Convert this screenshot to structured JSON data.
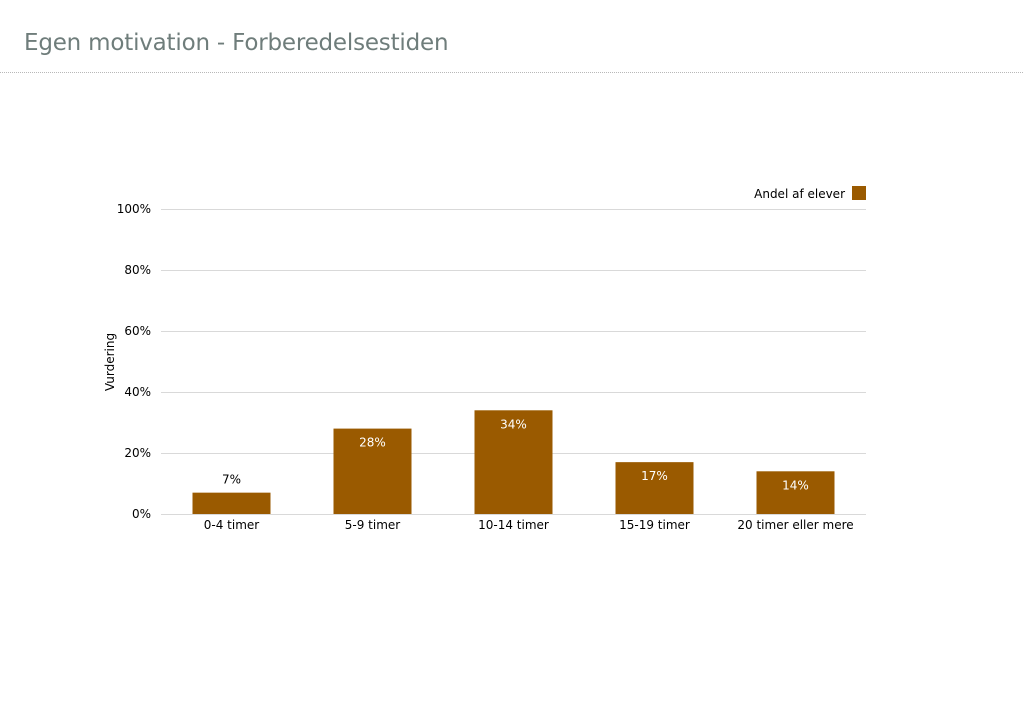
{
  "page": {
    "title": "Egen motivation - Forberedelsestiden"
  },
  "colors": {
    "bar": "#9a5a00",
    "grid": "#d9d9d9",
    "text": "#000000",
    "title": "#6f7d7b"
  },
  "chart_data": {
    "type": "bar",
    "categories": [
      "0-4 timer",
      "5-9 timer",
      "10-14 timer",
      "15-19 timer",
      "20 timer eller mere"
    ],
    "series": [
      {
        "name": "Andel af elever",
        "values": [
          7,
          28,
          34,
          17,
          14
        ],
        "labels": [
          "7%",
          "28%",
          "34%",
          "17%",
          "14%"
        ]
      }
    ],
    "xlabel": "",
    "ylabel": "Vurdering",
    "ylim": [
      0,
      100
    ],
    "yticks": [
      0,
      20,
      40,
      60,
      80,
      100
    ],
    "ytick_labels": [
      "0%",
      "20%",
      "40%",
      "60%",
      "80%",
      "100%"
    ],
    "grid": true,
    "legend": "top-right"
  }
}
